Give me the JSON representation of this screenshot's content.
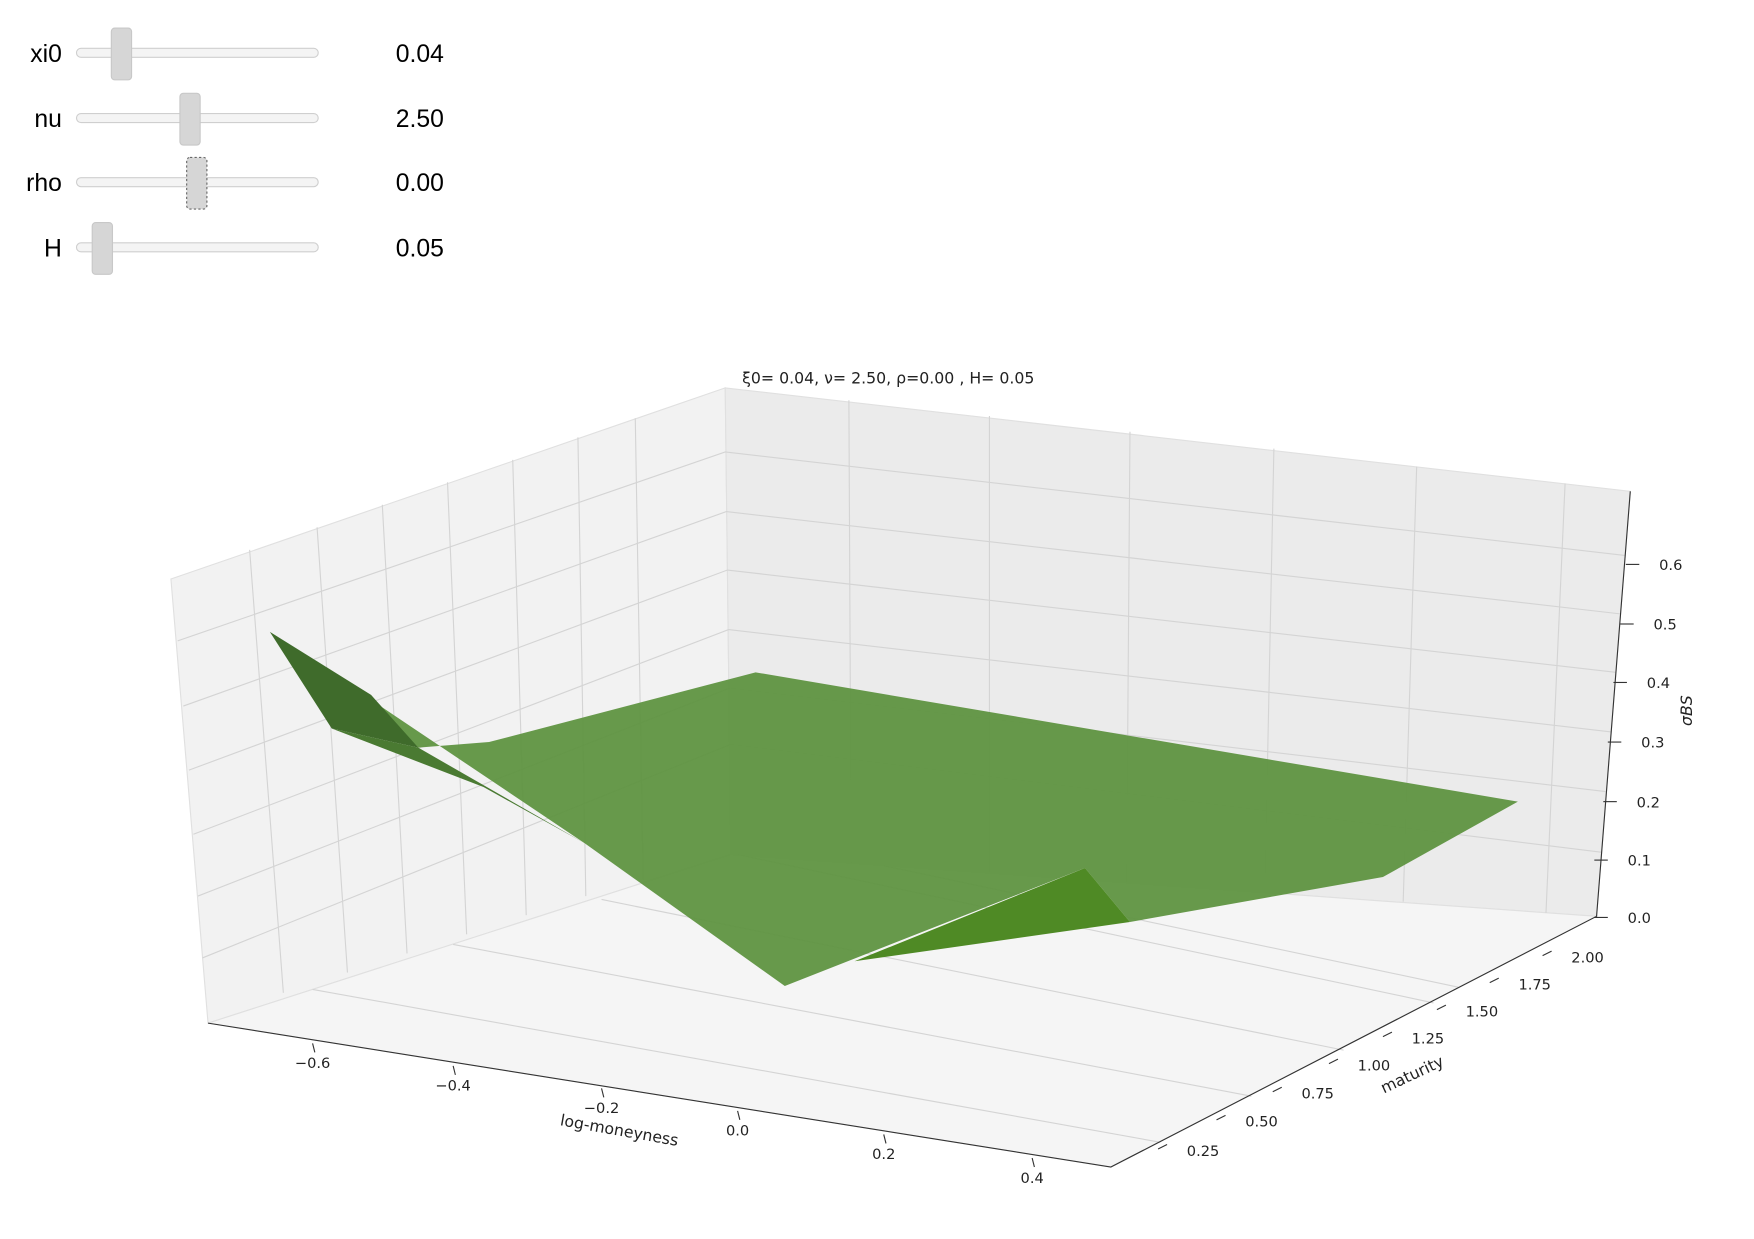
{
  "sliders": [
    {
      "label": "xi0",
      "value": "0.04"
    },
    {
      "label": "nu",
      "value": "2.50"
    },
    {
      "label": "rho",
      "value": "0.00"
    },
    {
      "label": "H",
      "value": "0.05"
    }
  ],
  "plot": {
    "title": "ξ0= 0.04, ν= 2.50, ρ=0.00 , H= 0.05",
    "x_label": "log-moneyness",
    "y_label": "maturity",
    "z_label": "σBS",
    "x_ticks": [
      "−0.6",
      "−0.4",
      "−0.2",
      "0.0",
      "0.2",
      "0.4"
    ],
    "y_ticks": [
      "0.25",
      "0.50",
      "0.75",
      "1.00",
      "1.25",
      "1.50",
      "1.75",
      "2.00"
    ],
    "z_ticks": [
      "0.0",
      "0.1",
      "0.2",
      "0.3",
      "0.4",
      "0.5",
      "0.6"
    ]
  }
}
